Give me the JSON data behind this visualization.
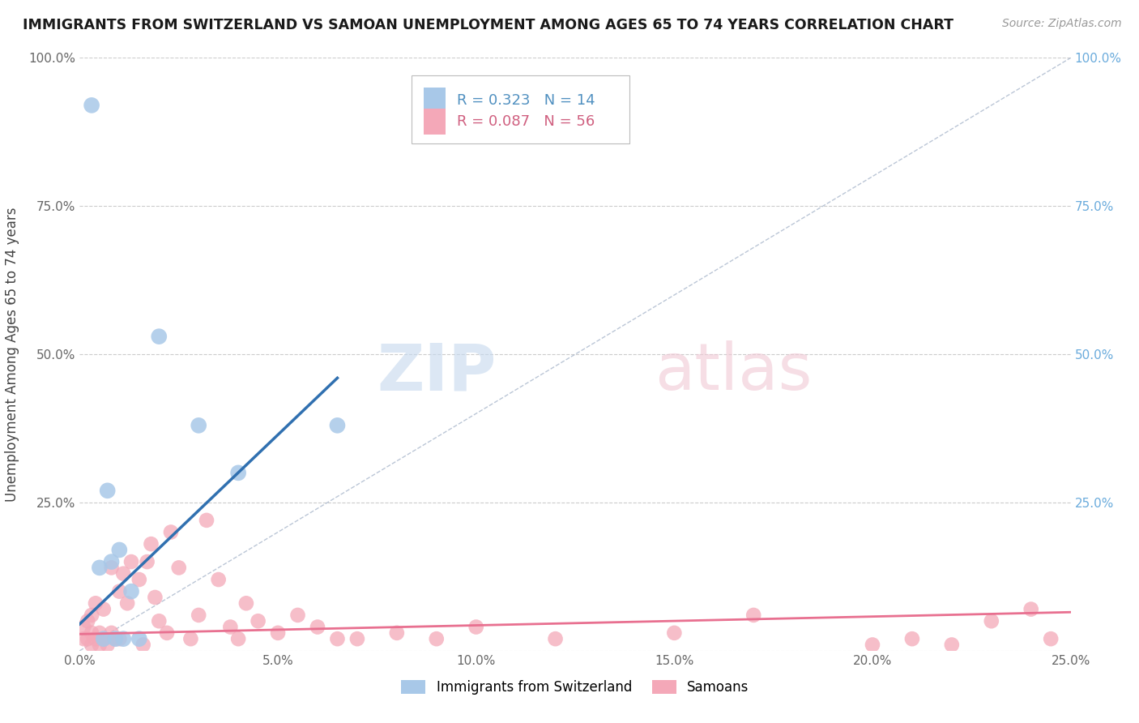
{
  "title": "IMMIGRANTS FROM SWITZERLAND VS SAMOAN UNEMPLOYMENT AMONG AGES 65 TO 74 YEARS CORRELATION CHART",
  "source": "Source: ZipAtlas.com",
  "ylabel": "Unemployment Among Ages 65 to 74 years",
  "xlim": [
    0,
    0.25
  ],
  "ylim": [
    0,
    1.0
  ],
  "xticks": [
    0.0,
    0.05,
    0.1,
    0.15,
    0.2,
    0.25
  ],
  "yticks": [
    0.0,
    0.25,
    0.5,
    0.75,
    1.0
  ],
  "xticklabels": [
    "0.0%",
    "5.0%",
    "10.0%",
    "15.0%",
    "20.0%",
    "25.0%"
  ],
  "yticklabels": [
    "",
    "25.0%",
    "50.0%",
    "75.0%",
    "100.0%"
  ],
  "legend_r1": "R = 0.323",
  "legend_n1": "N = 14",
  "legend_r2": "R = 0.087",
  "legend_n2": "N = 56",
  "blue_color": "#a8c8e8",
  "pink_color": "#f4a8b8",
  "blue_line_color": "#3070b0",
  "pink_line_color": "#e87090",
  "swiss_x": [
    0.003,
    0.005,
    0.006,
    0.007,
    0.008,
    0.009,
    0.01,
    0.011,
    0.013,
    0.015,
    0.02,
    0.03,
    0.04,
    0.065
  ],
  "swiss_y": [
    0.92,
    0.14,
    0.02,
    0.27,
    0.15,
    0.02,
    0.17,
    0.02,
    0.1,
    0.02,
    0.53,
    0.38,
    0.3,
    0.38
  ],
  "samoan_x": [
    0.001,
    0.001,
    0.002,
    0.002,
    0.003,
    0.003,
    0.003,
    0.004,
    0.004,
    0.005,
    0.005,
    0.006,
    0.006,
    0.007,
    0.008,
    0.008,
    0.009,
    0.01,
    0.01,
    0.011,
    0.012,
    0.013,
    0.015,
    0.016,
    0.017,
    0.018,
    0.019,
    0.02,
    0.022,
    0.023,
    0.025,
    0.028,
    0.03,
    0.032,
    0.035,
    0.038,
    0.04,
    0.042,
    0.045,
    0.05,
    0.055,
    0.06,
    0.065,
    0.07,
    0.08,
    0.09,
    0.1,
    0.12,
    0.15,
    0.17,
    0.2,
    0.21,
    0.22,
    0.23,
    0.24,
    0.245
  ],
  "samoan_y": [
    0.02,
    0.04,
    0.02,
    0.05,
    0.01,
    0.03,
    0.06,
    0.02,
    0.08,
    0.01,
    0.03,
    0.02,
    0.07,
    0.01,
    0.03,
    0.14,
    0.02,
    0.1,
    0.02,
    0.13,
    0.08,
    0.15,
    0.12,
    0.01,
    0.15,
    0.18,
    0.09,
    0.05,
    0.03,
    0.2,
    0.14,
    0.02,
    0.06,
    0.22,
    0.12,
    0.04,
    0.02,
    0.08,
    0.05,
    0.03,
    0.06,
    0.04,
    0.02,
    0.02,
    0.03,
    0.02,
    0.04,
    0.02,
    0.03,
    0.06,
    0.01,
    0.02,
    0.01,
    0.05,
    0.07,
    0.02
  ],
  "swiss_trend_x0": 0.0,
  "swiss_trend_y0": 0.045,
  "swiss_trend_x1": 0.065,
  "swiss_trend_y1": 0.46,
  "samoan_trend_x0": 0.0,
  "samoan_trend_y0": 0.028,
  "samoan_trend_x1": 0.25,
  "samoan_trend_y1": 0.065,
  "ref_line_x0": 0.0,
  "ref_line_y0": 0.0,
  "ref_line_x1": 0.25,
  "ref_line_y1": 1.0,
  "background_color": "#ffffff",
  "grid_color": "#cccccc"
}
